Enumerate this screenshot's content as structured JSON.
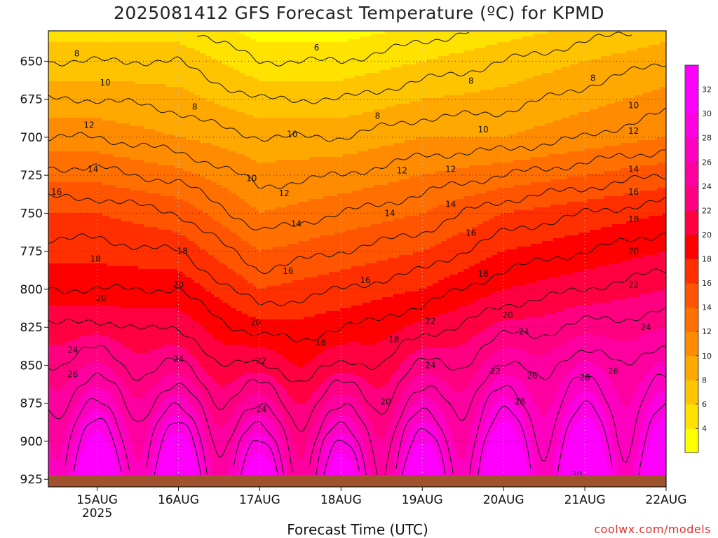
{
  "title": "2025081412 GFS Forecast Temperature (ºC) for KPMD",
  "credit": "coolwx.com/models",
  "chart_data": {
    "type": "heatmap",
    "title": "2025081412 GFS Forecast Temperature (ºC) for KPMD",
    "xlabel": "Forecast Time (UTC)",
    "ylabel": "",
    "x_ticks": [
      "15AUG",
      "16AUG",
      "17AUG",
      "18AUG",
      "19AUG",
      "20AUG",
      "21AUG",
      "22AUG"
    ],
    "x_year": "2025",
    "x_range_days": [
      14.4,
      22.0
    ],
    "y_ticks": [
      650,
      675,
      700,
      725,
      750,
      775,
      800,
      825,
      850,
      875,
      900,
      925
    ],
    "y_range": [
      630,
      930
    ],
    "y_inverted": true,
    "grid": true,
    "colorbar_ticks": [
      4,
      6,
      8,
      10,
      12,
      14,
      16,
      18,
      20,
      22,
      24,
      26,
      28,
      30,
      32
    ],
    "colorbar_colors": [
      "#ffff00",
      "#ffe200",
      "#ffc400",
      "#ffa800",
      "#ff8c00",
      "#ff7000",
      "#ff5400",
      "#ff2f00",
      "#ff0000",
      "#ff0040",
      "#ff0080",
      "#ff00a0",
      "#ff00c0",
      "#ff00e0",
      "#ff00ff"
    ],
    "ground_color": "#a0522d",
    "contour_levels": [
      6,
      8,
      10,
      12,
      14,
      16,
      18,
      20,
      22,
      24,
      26,
      28,
      30
    ],
    "temperature_profile_by_day": [
      {
        "day": "15AUG",
        "levels": [
          {
            "p": 650,
            "t": 8
          },
          {
            "p": 700,
            "t": 12
          },
          {
            "p": 750,
            "t": 17
          },
          {
            "p": 800,
            "t": 20
          },
          {
            "p": 850,
            "t": 25
          },
          {
            "p": 900,
            "t": 30
          }
        ]
      },
      {
        "day": "16AUG",
        "levels": [
          {
            "p": 650,
            "t": 8
          },
          {
            "p": 700,
            "t": 11
          },
          {
            "p": 750,
            "t": 16
          },
          {
            "p": 800,
            "t": 20
          },
          {
            "p": 850,
            "t": 24
          },
          {
            "p": 900,
            "t": 30
          }
        ]
      },
      {
        "day": "17AUG",
        "levels": [
          {
            "p": 650,
            "t": 6
          },
          {
            "p": 700,
            "t": 10
          },
          {
            "p": 750,
            "t": 13
          },
          {
            "p": 800,
            "t": 17
          },
          {
            "p": 850,
            "t": 22
          },
          {
            "p": 900,
            "t": 28
          }
        ]
      },
      {
        "day": "18AUG",
        "levels": [
          {
            "p": 650,
            "t": 6
          },
          {
            "p": 700,
            "t": 10
          },
          {
            "p": 750,
            "t": 14
          },
          {
            "p": 800,
            "t": 18
          },
          {
            "p": 850,
            "t": 22
          },
          {
            "p": 900,
            "t": 28
          }
        ]
      },
      {
        "day": "19AUG",
        "levels": [
          {
            "p": 650,
            "t": 7
          },
          {
            "p": 700,
            "t": 11
          },
          {
            "p": 750,
            "t": 15
          },
          {
            "p": 800,
            "t": 19
          },
          {
            "p": 850,
            "t": 24
          },
          {
            "p": 900,
            "t": 29
          }
        ]
      },
      {
        "day": "20AUG",
        "levels": [
          {
            "p": 650,
            "t": 8
          },
          {
            "p": 700,
            "t": 11
          },
          {
            "p": 750,
            "t": 17
          },
          {
            "p": 800,
            "t": 21
          },
          {
            "p": 850,
            "t": 26
          },
          {
            "p": 900,
            "t": 31
          }
        ]
      },
      {
        "day": "21AUG",
        "levels": [
          {
            "p": 650,
            "t": 9
          },
          {
            "p": 700,
            "t": 12
          },
          {
            "p": 750,
            "t": 18
          },
          {
            "p": 800,
            "t": 22
          },
          {
            "p": 850,
            "t": 27
          },
          {
            "p": 900,
            "t": 31
          }
        ]
      },
      {
        "day": "22AUG",
        "levels": [
          {
            "p": 650,
            "t": 10
          },
          {
            "p": 700,
            "t": 13
          },
          {
            "p": 750,
            "t": 19
          },
          {
            "p": 800,
            "t": 23
          },
          {
            "p": 850,
            "t": 27
          },
          {
            "p": 900,
            "t": 31
          }
        ]
      }
    ],
    "contour_labels": [
      {
        "text": "8",
        "day": 14.75,
        "p": 645
      },
      {
        "text": "6",
        "day": 17.7,
        "p": 641
      },
      {
        "text": "10",
        "day": 15.1,
        "p": 664
      },
      {
        "text": "8",
        "day": 16.2,
        "p": 680
      },
      {
        "text": "8",
        "day": 18.45,
        "p": 686
      },
      {
        "text": "8",
        "day": 19.6,
        "p": 663
      },
      {
        "text": "8",
        "day": 21.1,
        "p": 661
      },
      {
        "text": "10",
        "day": 21.6,
        "p": 679
      },
      {
        "text": "12",
        "day": 14.9,
        "p": 692
      },
      {
        "text": "10",
        "day": 17.4,
        "p": 698
      },
      {
        "text": "10",
        "day": 19.75,
        "p": 695
      },
      {
        "text": "12",
        "day": 21.6,
        "p": 696
      },
      {
        "text": "14",
        "day": 14.95,
        "p": 721
      },
      {
        "text": "10",
        "day": 16.9,
        "p": 727
      },
      {
        "text": "12",
        "day": 18.75,
        "p": 722
      },
      {
        "text": "12",
        "day": 19.35,
        "p": 721
      },
      {
        "text": "14",
        "day": 21.6,
        "p": 721
      },
      {
        "text": "16",
        "day": 14.5,
        "p": 736
      },
      {
        "text": "12",
        "day": 17.3,
        "p": 737
      },
      {
        "text": "14",
        "day": 18.6,
        "p": 750
      },
      {
        "text": "14",
        "day": 19.35,
        "p": 744
      },
      {
        "text": "16",
        "day": 21.6,
        "p": 736
      },
      {
        "text": "14",
        "day": 17.45,
        "p": 757
      },
      {
        "text": "16",
        "day": 19.6,
        "p": 763
      },
      {
        "text": "18",
        "day": 21.6,
        "p": 754
      },
      {
        "text": "18",
        "day": 14.98,
        "p": 780
      },
      {
        "text": "18",
        "day": 16.05,
        "p": 775
      },
      {
        "text": "16",
        "day": 17.35,
        "p": 788
      },
      {
        "text": "16",
        "day": 18.3,
        "p": 794
      },
      {
        "text": "18",
        "day": 19.75,
        "p": 790
      },
      {
        "text": "20",
        "day": 21.6,
        "p": 775
      },
      {
        "text": "20",
        "day": 15.05,
        "p": 806
      },
      {
        "text": "20",
        "day": 16.0,
        "p": 797
      },
      {
        "text": "22",
        "day": 21.6,
        "p": 797
      },
      {
        "text": "20",
        "day": 20.05,
        "p": 817
      },
      {
        "text": "22",
        "day": 19.1,
        "p": 821
      },
      {
        "text": "20",
        "day": 16.95,
        "p": 822
      },
      {
        "text": "24",
        "day": 21.75,
        "p": 825
      },
      {
        "text": "24",
        "day": 20.25,
        "p": 828
      },
      {
        "text": "18",
        "day": 17.75,
        "p": 835
      },
      {
        "text": "18",
        "day": 18.65,
        "p": 833
      },
      {
        "text": "24",
        "day": 14.7,
        "p": 840
      },
      {
        "text": "24",
        "day": 16.0,
        "p": 846
      },
      {
        "text": "22",
        "day": 17.02,
        "p": 847
      },
      {
        "text": "24",
        "day": 19.1,
        "p": 850
      },
      {
        "text": "26",
        "day": 21.35,
        "p": 854
      },
      {
        "text": "22",
        "day": 19.9,
        "p": 854
      },
      {
        "text": "26",
        "day": 20.35,
        "p": 857
      },
      {
        "text": "26",
        "day": 14.7,
        "p": 856
      },
      {
        "text": "28",
        "day": 21.0,
        "p": 858
      },
      {
        "text": "28",
        "day": 20.2,
        "p": 874
      },
      {
        "text": "20",
        "day": 18.55,
        "p": 874
      },
      {
        "text": "24",
        "day": 17.02,
        "p": 879
      },
      {
        "text": "30",
        "day": 20.9,
        "p": 922
      }
    ]
  }
}
